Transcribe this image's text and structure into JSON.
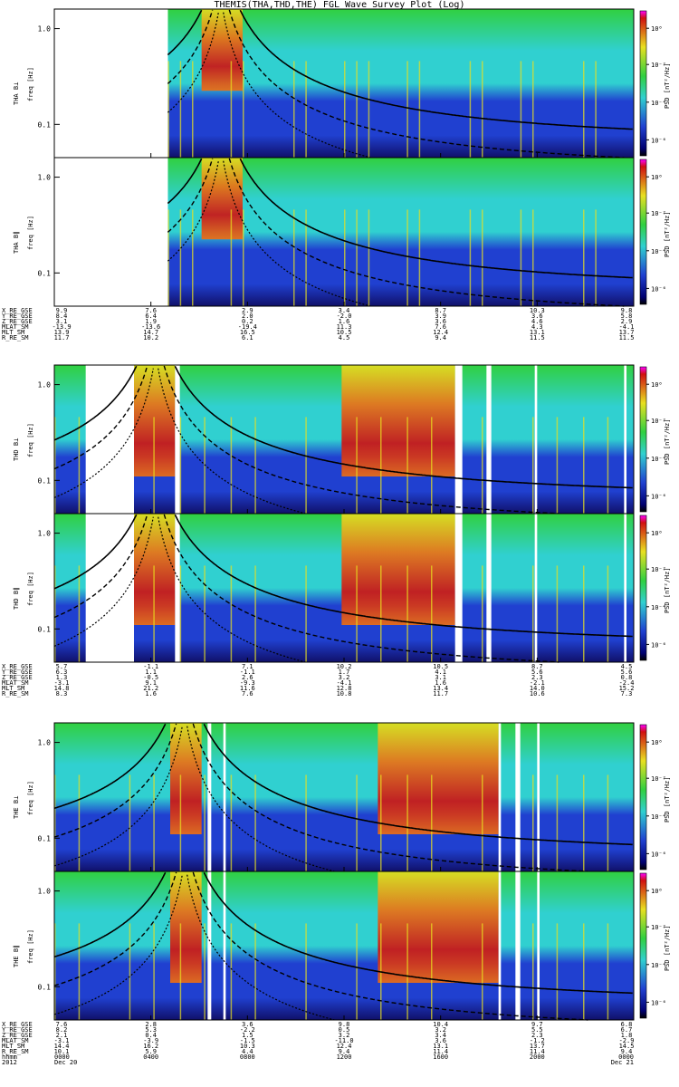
{
  "title": "THEMIS(THA,THD,THE) FGL Wave Survey Plot (Log)",
  "colors": {
    "red": "#d01010",
    "yellow": "#e8e020",
    "green": "#30d040",
    "cyan": "#30d0d0",
    "blue": "#2040d0",
    "navy": "#10106a",
    "orange": "#f07010"
  },
  "chart_data": {
    "type": "heatmap",
    "x_range_hours": [
      0,
      24
    ],
    "freq_range_hz": [
      0.045,
      1.6
    ],
    "freq_ticks": [
      {
        "value": 1.0,
        "label": "1.0"
      },
      {
        "value": 0.1,
        "label": "0.1"
      }
    ],
    "colorbar_ticks": [
      {
        "label": "10⁰",
        "frac": 0.12
      },
      {
        "label": "10⁻²",
        "frac": 0.37
      },
      {
        "label": "10⁻⁴",
        "frac": 0.63
      },
      {
        "label": "10⁻⁶",
        "frac": 0.89
      }
    ],
    "colorbar_label": "PSD [nT²/Hz]",
    "probes": [
      {
        "name": "THA",
        "panels": [
          {
            "ylabel_comp": "THA B⊥",
            "ylabel_unit": "freq [Hz]"
          },
          {
            "ylabel_comp": "THA B∥",
            "ylabel_unit": "freq [Hz]"
          }
        ],
        "data_start_hour": 4.7,
        "gaps_hours": [],
        "ephemeris": {
          "labels": [
            "X_RE_GSE",
            "Y_RE_GSE",
            "Z_RE_GSE",
            "MLAT_SM",
            "MLT_SM",
            "R_RE_SM"
          ],
          "columns": [
            [
              "9.9",
              "8.4",
              "3.1",
              "-13.9",
              "13.9",
              "11.7"
            ],
            [
              "7.6",
              "6.4",
              "1.9",
              "-13.6",
              "14.7",
              "10.2"
            ],
            [
              "2.9",
              "2.0",
              "0.2",
              "-19.4",
              "16.5",
              "6.1"
            ],
            [
              "3.4",
              "-2.0",
              "1.6",
              "11.3",
              "10.5",
              "4.5"
            ],
            [
              "8.7",
              "3.9",
              "3.6",
              "7.6",
              "12.4",
              "9.4"
            ],
            [
              "10.3",
              "3.6",
              "4.6",
              "4.3",
              "13.1",
              "11.5"
            ],
            [
              "9.8",
              "5.8",
              "2.9",
              "-4.1",
              "13.7",
              "11.5"
            ]
          ]
        }
      },
      {
        "name": "THD",
        "panels": [
          {
            "ylabel_comp": "THD B⊥",
            "ylabel_unit": "freq [Hz]"
          },
          {
            "ylabel_comp": "THD B∥",
            "ylabel_unit": "freq [Hz]"
          }
        ],
        "data_start_hour": 0.0,
        "gaps_hours": [
          [
            1.3,
            3.3
          ],
          [
            5.0,
            5.2
          ],
          [
            16.6,
            16.9
          ],
          [
            17.9,
            18.1
          ],
          [
            19.9,
            20.0
          ],
          [
            23.6,
            23.7
          ]
        ],
        "ephemeris": {
          "labels": [
            "X_RE_GSE",
            "Y_RE_GSE",
            "Z_RE_GSE",
            "MLAT_SM",
            "MLT_SM",
            "R_RE_SM"
          ],
          "columns": [
            [
              "5.7",
              "6.3",
              "1.3",
              "-3.1",
              "14.8",
              "8.3"
            ],
            [
              "-1.1",
              "1.1",
              "-0.5",
              "9.1",
              "21.2",
              "1.6"
            ],
            [
              "7.1",
              "-1.1",
              "2.6",
              "-9.3",
              "11.6",
              "7.6"
            ],
            [
              "10.2",
              "1.7",
              "3.2",
              "-4.1",
              "12.8",
              "10.8"
            ],
            [
              "10.5",
              "4.1",
              "3.1",
              "1.6",
              "13.4",
              "11.7"
            ],
            [
              "8.7",
              "5.6",
              "2.3",
              "-2.1",
              "14.0",
              "10.6"
            ],
            [
              "4.5",
              "5.6",
              "0.8",
              "-2.4",
              "15.2",
              "7.3"
            ]
          ]
        }
      },
      {
        "name": "THE",
        "panels": [
          {
            "ylabel_comp": "THE B⊥",
            "ylabel_unit": "freq [Hz]"
          },
          {
            "ylabel_comp": "THE B∥",
            "ylabel_unit": "freq [Hz]"
          }
        ],
        "data_start_hour": 0.0,
        "gaps_hours": [
          [
            6.35,
            6.5
          ],
          [
            7.0,
            7.1
          ],
          [
            18.4,
            18.5
          ],
          [
            19.1,
            19.3
          ],
          [
            20.0,
            20.1
          ]
        ],
        "ephemeris": {
          "labels": [
            "X_RE_GSE",
            "Y_RE_GSE",
            "Z_RE_GSE",
            "MLAT_SM",
            "MLT_SM",
            "R_RE_SM"
          ],
          "columns": [
            [
              "7.6",
              "8.2",
              "2.1",
              "-3.1",
              "14.4",
              "10.1"
            ],
            [
              "2.8",
              "5.3",
              "0.4",
              "-3.9",
              "16.2",
              "5.9"
            ],
            [
              "3.6",
              "-2.2",
              "1.5",
              "-1.5",
              "10.3",
              "4.4"
            ],
            [
              "9.8",
              "0.5",
              "3.2",
              "-11.0",
              "12.4",
              "9.4"
            ],
            [
              "10.4",
              "3.2",
              "3.4",
              "3.6",
              "13.1",
              "11.4"
            ],
            [
              "9.7",
              "5.5",
              "2.3",
              "-1.2",
              "13.7",
              "11.4"
            ],
            [
              "6.8",
              "6.7",
              "1.8",
              "-2.9",
              "14.5",
              "9.4"
            ]
          ]
        }
      }
    ],
    "time_axis": {
      "labels": [
        "hhmm",
        "2012"
      ],
      "ticks": [
        {
          "hhmm": "0000",
          "date": "Dec 20"
        },
        {
          "hhmm": "0400",
          "date": ""
        },
        {
          "hhmm": "0800",
          "date": ""
        },
        {
          "hhmm": "1200",
          "date": ""
        },
        {
          "hhmm": "1600",
          "date": ""
        },
        {
          "hhmm": "2000",
          "date": ""
        },
        {
          "hhmm": "0000",
          "date": "Dec 21"
        }
      ]
    }
  }
}
